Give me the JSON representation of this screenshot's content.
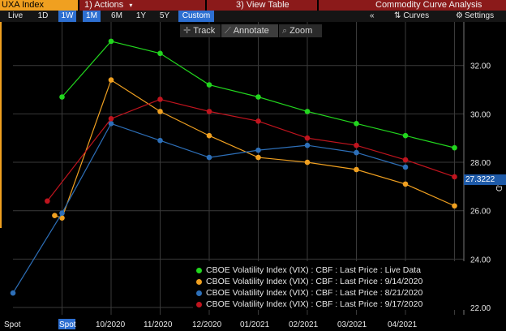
{
  "header": {
    "ticker": "UXA Index",
    "actions": "1) Actions",
    "actions_arrow": "▾",
    "view_table": "3) View Table",
    "title": "Commodity Curve Analysis"
  },
  "toolbar": {
    "periods": [
      {
        "label": "Live",
        "selected": false
      },
      {
        "label": "1D",
        "selected": false
      },
      {
        "label": "1W",
        "selected": true
      },
      {
        "label": "1M",
        "selected": true
      },
      {
        "label": "6M",
        "selected": false
      },
      {
        "label": "1Y",
        "selected": false
      },
      {
        "label": "5Y",
        "selected": false
      },
      {
        "label": "Custom",
        "selected": true
      }
    ],
    "collapse": "«",
    "curves": "Curves",
    "settings": "Settings"
  },
  "modes": {
    "track": "Track",
    "annotate": "Annotate",
    "zoom": "Zoom",
    "active": "annotate"
  },
  "price_label": {
    "value": "27.3222",
    "color": "#1e5aa8"
  },
  "colors": {
    "green": "#22d61e",
    "orange": "#f0a020",
    "blue": "#2d6fb8",
    "red": "#c0141e",
    "grid": "#3a3a3a"
  },
  "chart_data": {
    "type": "line",
    "x_ticks": [
      "Spot",
      "Spot",
      "10/2020",
      "11/2020",
      "12/2020",
      "01/2021",
      "02/2021",
      "03/2021",
      "04/2021"
    ],
    "ylabel": "USD",
    "y_ticks": [
      "22.00",
      "24.00",
      "26.00",
      "28.00",
      "30.00",
      "32.00"
    ],
    "ylim": [
      21.7,
      33.8
    ],
    "grid": true,
    "legend_position": "bottom-right",
    "series": [
      {
        "name": "CBOE Volatility Index (VIX) : CBF : Last Price : Live Data",
        "color": "#22d61e",
        "points": [
          [
            1,
            30.7
          ],
          [
            2,
            33.0
          ],
          [
            3,
            32.5
          ],
          [
            4,
            31.2
          ],
          [
            5,
            30.7
          ],
          [
            6,
            30.1
          ],
          [
            7,
            29.6
          ],
          [
            8,
            29.1
          ],
          [
            9,
            28.6
          ]
        ]
      },
      {
        "name": "CBOE Volatility Index (VIX) : CBF : Last Price : 9/14/2020",
        "color": "#f0a020",
        "points": [
          [
            0.85,
            25.8
          ],
          [
            1,
            25.7
          ],
          [
            2,
            31.4
          ],
          [
            3,
            30.1
          ],
          [
            4,
            29.1
          ],
          [
            5,
            28.2
          ],
          [
            6,
            28.0
          ],
          [
            7,
            27.7
          ],
          [
            8,
            27.1
          ],
          [
            9,
            26.2
          ]
        ]
      },
      {
        "name": "CBOE Volatility Index (VIX) : CBF : Last Price : 8/21/2020",
        "color": "#2d6fb8",
        "points": [
          [
            0,
            22.6
          ],
          [
            1,
            25.9
          ],
          [
            2,
            29.6
          ],
          [
            3,
            28.9
          ],
          [
            4,
            28.2
          ],
          [
            5,
            28.5
          ],
          [
            6,
            28.7
          ],
          [
            7,
            28.4
          ],
          [
            8,
            27.8
          ]
        ]
      },
      {
        "name": "CBOE Volatility Index (VIX) : CBF : Last Price : 9/17/2020",
        "color": "#c0141e",
        "points": [
          [
            0.7,
            26.4
          ],
          [
            2,
            29.8
          ],
          [
            3,
            30.6
          ],
          [
            4,
            30.1
          ],
          [
            5,
            29.7
          ],
          [
            6,
            29.0
          ],
          [
            7,
            28.7
          ],
          [
            8,
            28.1
          ],
          [
            9,
            27.4
          ]
        ]
      }
    ]
  }
}
